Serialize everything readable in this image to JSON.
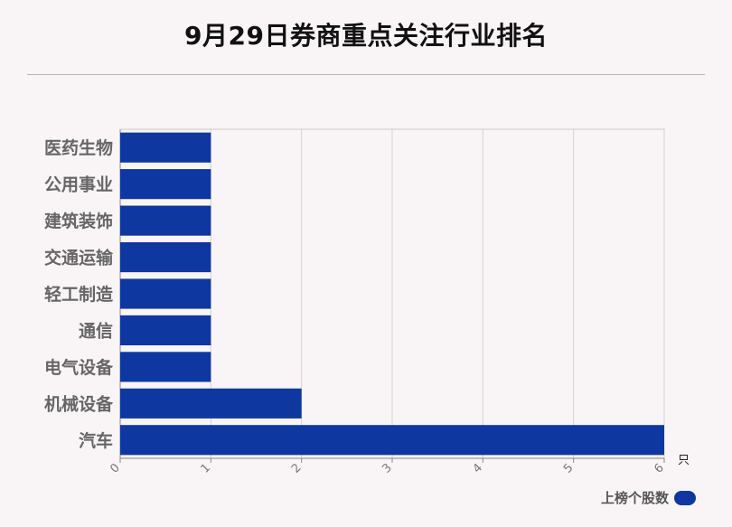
{
  "title": "9月29日券商重点关注行业排名",
  "chart_data": {
    "type": "bar",
    "orientation": "horizontal",
    "categories": [
      "医药生物",
      "公用事业",
      "建筑装饰",
      "交通运输",
      "轻工制造",
      "通信",
      "电气设备",
      "机械设备",
      "汽车"
    ],
    "series": [
      {
        "name": "上榜个股数",
        "values": [
          1,
          1,
          1,
          1,
          1,
          1,
          1,
          2,
          6
        ]
      }
    ],
    "xlim": [
      0,
      6
    ],
    "x_ticks": [
      "0",
      "1",
      "2",
      "3",
      "4",
      "5",
      "6"
    ],
    "x_unit": "只",
    "grid": true,
    "legend_position": "bottom-right",
    "bar_color": "#0f37a0"
  },
  "legend": {
    "label": "上榜个股数"
  }
}
